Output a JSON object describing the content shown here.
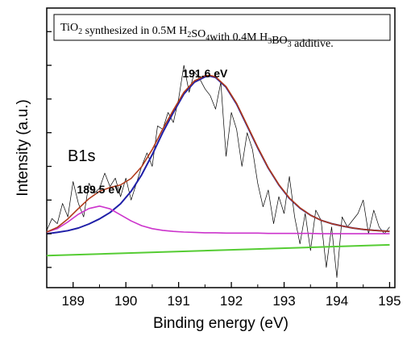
{
  "chart_data": {
    "type": "line",
    "xlabel": "Binding energy (eV)",
    "ylabel": "Intensity (a.u.)",
    "xlim": [
      188.5,
      195.1
    ],
    "ylim": [
      -1.6,
      6.7
    ],
    "x_ticks": [
      "189",
      "190",
      "191",
      "192",
      "193",
      "194",
      "195"
    ],
    "x_tick_values": [
      189,
      190,
      191,
      192,
      193,
      194,
      195
    ],
    "y_tick_labels_shown": false,
    "grid": false,
    "legend_box": {
      "parts": [
        {
          "text": "TiO",
          "sub": false
        },
        {
          "text": "2",
          "sub": true
        },
        {
          "text": " synthesized in 0.5M H",
          "sub": false
        },
        {
          "text": "2",
          "sub": true
        },
        {
          "text": "SO",
          "sub": false
        },
        {
          "text": "4",
          "sub": true
        },
        {
          "text": "with 0.4M H",
          "sub": false
        },
        {
          "text": "3",
          "sub": true
        },
        {
          "text": "BO",
          "sub": false
        },
        {
          "text": "3",
          "sub": true
        },
        {
          "text": " additive.",
          "sub": false
        }
      ]
    },
    "panel_label": "B1s",
    "peak_labels": [
      {
        "text": "191.6 eV",
        "x": 191.5,
        "y": 4.5
      },
      {
        "text": "189.5 eV",
        "x": 189.5,
        "y": 1.05
      }
    ],
    "series": [
      {
        "color": "#000000",
        "style": "raw",
        "x": [
          188.5,
          188.6,
          188.7,
          188.8,
          188.9,
          189.0,
          189.1,
          189.2,
          189.3,
          189.4,
          189.5,
          189.6,
          189.7,
          189.8,
          189.9,
          190.0,
          190.1,
          190.2,
          190.3,
          190.4,
          190.5,
          190.6,
          190.7,
          190.8,
          190.9,
          191.0,
          191.1,
          191.2,
          191.3,
          191.4,
          191.5,
          191.6,
          191.7,
          191.8,
          191.9,
          192.0,
          192.1,
          192.2,
          192.3,
          192.4,
          192.5,
          192.6,
          192.7,
          192.8,
          192.9,
          193.0,
          193.1,
          193.2,
          193.3,
          193.4,
          193.5,
          193.6,
          193.7,
          193.8,
          193.9,
          194.0,
          194.1,
          194.2,
          194.3,
          194.4,
          194.5,
          194.6,
          194.7,
          194.8,
          194.9,
          195.0
        ],
        "y": [
          0.1,
          0.45,
          0.3,
          0.9,
          0.5,
          1.55,
          0.9,
          0.5,
          1.5,
          1.2,
          1.35,
          1.8,
          1.4,
          1.65,
          1.1,
          1.65,
          1.0,
          1.5,
          2.0,
          2.4,
          2.0,
          3.2,
          3.1,
          3.6,
          3.3,
          4.0,
          5.0,
          4.2,
          4.8,
          4.6,
          4.3,
          4.1,
          3.7,
          4.5,
          2.3,
          3.6,
          3.1,
          2.0,
          3.0,
          2.5,
          1.5,
          0.8,
          1.3,
          0.3,
          1.1,
          0.6,
          1.7,
          0.5,
          -0.3,
          0.6,
          -0.5,
          0.7,
          0.4,
          -1.0,
          0.2,
          -1.3,
          0.5,
          0.2,
          0.4,
          0.6,
          1.0,
          0.0,
          0.7,
          0.2,
          0.0,
          0.2
        ]
      },
      {
        "color": "#1f1fa8",
        "style": "fit-main",
        "x": [
          188.5,
          188.7,
          188.9,
          189.1,
          189.3,
          189.5,
          189.7,
          189.9,
          190.1,
          190.3,
          190.5,
          190.7,
          190.9,
          191.1,
          191.3,
          191.5,
          191.6,
          191.7,
          191.9,
          192.1,
          192.3,
          192.5,
          192.7,
          192.9,
          193.1,
          193.3,
          193.5,
          193.7,
          193.9,
          194.1,
          194.3,
          194.5,
          194.7,
          194.9,
          195.0
        ],
        "y": [
          0.0,
          0.04,
          0.09,
          0.17,
          0.29,
          0.44,
          0.63,
          0.89,
          1.26,
          1.75,
          2.35,
          3.01,
          3.6,
          4.15,
          4.5,
          4.66,
          4.68,
          4.64,
          4.35,
          3.85,
          3.2,
          2.55,
          1.95,
          1.45,
          1.05,
          0.76,
          0.55,
          0.4,
          0.3,
          0.23,
          0.17,
          0.13,
          0.1,
          0.08,
          0.07
        ]
      },
      {
        "color": "#cc33cc",
        "style": "fit-minor",
        "x": [
          188.5,
          188.7,
          188.9,
          189.1,
          189.3,
          189.5,
          189.7,
          189.9,
          190.1,
          190.3,
          190.5,
          190.7,
          190.9,
          191.1,
          191.3,
          191.5,
          191.7,
          191.9,
          192.1,
          192.3,
          192.5,
          192.7,
          192.9,
          193.1,
          193.3,
          193.5,
          193.7,
          193.9,
          194.1,
          194.3,
          194.5,
          194.7,
          194.9,
          195.0
        ],
        "y": [
          0.05,
          0.15,
          0.35,
          0.58,
          0.75,
          0.82,
          0.74,
          0.56,
          0.38,
          0.24,
          0.15,
          0.1,
          0.07,
          0.05,
          0.04,
          0.03,
          0.03,
          0.02,
          0.02,
          0.02,
          0.02,
          0.01,
          0.01,
          0.01,
          0.01,
          0.01,
          0.0,
          0.0,
          0.0,
          0.0,
          0.0,
          0.0,
          0.0,
          0.0
        ]
      },
      {
        "color": "#b03a1a",
        "style": "envelope",
        "x": [
          188.5,
          188.7,
          188.9,
          189.1,
          189.3,
          189.5,
          189.7,
          189.9,
          190.1,
          190.3,
          190.5,
          190.7,
          190.9,
          191.1,
          191.3,
          191.5,
          191.6,
          191.7,
          191.9,
          192.1,
          192.3,
          192.5,
          192.7,
          192.9,
          193.1,
          193.3,
          193.5,
          193.7,
          193.9,
          194.1,
          194.3,
          194.5,
          194.7,
          194.9,
          195.0
        ],
        "y": [
          0.05,
          0.19,
          0.44,
          0.75,
          1.04,
          1.26,
          1.37,
          1.45,
          1.64,
          1.99,
          2.5,
          3.11,
          3.67,
          4.2,
          4.54,
          4.69,
          4.7,
          4.66,
          4.37,
          3.87,
          3.22,
          2.57,
          1.96,
          1.46,
          1.06,
          0.77,
          0.55,
          0.4,
          0.3,
          0.23,
          0.17,
          0.13,
          0.1,
          0.08,
          0.07
        ]
      },
      {
        "color": "#55cc33",
        "style": "background",
        "x": [
          188.5,
          195.0
        ],
        "y": [
          -0.65,
          -0.33
        ]
      }
    ]
  }
}
